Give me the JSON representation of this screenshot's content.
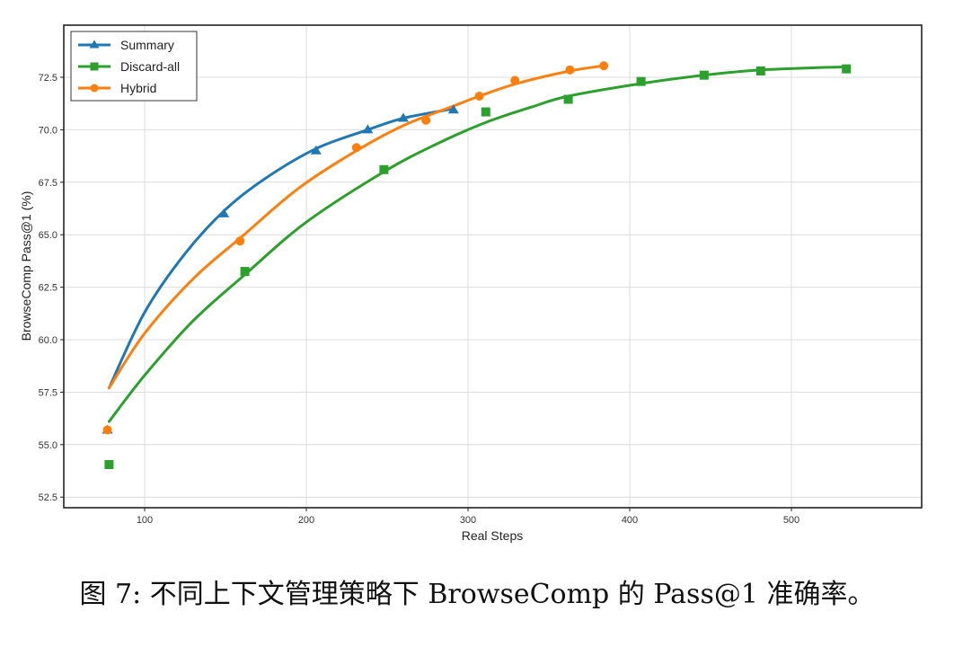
{
  "chart_data": {
    "type": "line",
    "title": "",
    "xlabel": "Real Steps",
    "ylabel": "BrowseComp Pass@1 (%)",
    "xlim": [
      50,
      580
    ],
    "ylim": [
      52.0,
      75.0
    ],
    "xticks": [
      100,
      200,
      300,
      400,
      500
    ],
    "xtick_labels": [
      "100",
      "200",
      "300",
      "400",
      "500"
    ],
    "yticks": [
      52.5,
      55.0,
      57.5,
      60.0,
      62.5,
      65.0,
      67.5,
      70.0,
      72.5
    ],
    "ytick_labels": [
      "52.5",
      "55.0",
      "57.5",
      "60.0",
      "62.5",
      "65.0",
      "67.5",
      "70.0",
      "72.5"
    ],
    "grid": true,
    "legend_position": "upper left",
    "series": [
      {
        "name": "Summary",
        "color": "#1f77b4",
        "marker": "triangle",
        "points": [
          [
            77,
            55.7
          ],
          [
            149,
            66.0
          ],
          [
            206,
            69.0
          ],
          [
            238,
            70.0
          ],
          [
            260,
            70.55
          ],
          [
            291,
            70.95
          ]
        ],
        "fit_curve": [
          [
            78,
            57.7
          ],
          [
            100,
            61.3
          ],
          [
            125,
            64.1
          ],
          [
            150,
            66.2
          ],
          [
            175,
            67.7
          ],
          [
            206,
            69.1
          ],
          [
            238,
            70.0
          ],
          [
            260,
            70.55
          ],
          [
            291,
            71.0
          ]
        ]
      },
      {
        "name": "Discard-all",
        "color": "#2ca02c",
        "marker": "square",
        "points": [
          [
            78,
            54.05
          ],
          [
            162,
            63.25
          ],
          [
            248,
            68.1
          ],
          [
            311,
            70.85
          ],
          [
            362,
            71.45
          ],
          [
            407,
            72.3
          ],
          [
            446,
            72.6
          ],
          [
            481,
            72.8
          ],
          [
            534,
            72.9
          ]
        ],
        "fit_curve": [
          [
            78,
            56.1
          ],
          [
            100,
            58.3
          ],
          [
            130,
            60.9
          ],
          [
            162,
            63.1
          ],
          [
            200,
            65.6
          ],
          [
            248,
            68.0
          ],
          [
            280,
            69.3
          ],
          [
            311,
            70.35
          ],
          [
            340,
            71.1
          ],
          [
            362,
            71.6
          ],
          [
            407,
            72.2
          ],
          [
            446,
            72.6
          ],
          [
            481,
            72.85
          ],
          [
            534,
            73.0
          ]
        ]
      },
      {
        "name": "Hybrid",
        "color": "#ff7f0e",
        "marker": "circle",
        "points": [
          [
            77,
            55.7
          ],
          [
            159,
            64.7
          ],
          [
            231,
            69.15
          ],
          [
            274,
            70.45
          ],
          [
            307,
            71.6
          ],
          [
            329,
            72.35
          ],
          [
            363,
            72.85
          ],
          [
            384,
            73.05
          ]
        ],
        "fit_curve": [
          [
            78,
            57.7
          ],
          [
            100,
            60.3
          ],
          [
            130,
            62.9
          ],
          [
            160,
            64.9
          ],
          [
            195,
            67.2
          ],
          [
            231,
            69.0
          ],
          [
            260,
            70.2
          ],
          [
            290,
            71.1
          ],
          [
            307,
            71.6
          ],
          [
            330,
            72.2
          ],
          [
            363,
            72.8
          ],
          [
            384,
            73.05
          ]
        ]
      }
    ]
  },
  "caption": "图 7: 不同上下文管理策略下 BrowseComp 的 Pass@1 准确率。"
}
